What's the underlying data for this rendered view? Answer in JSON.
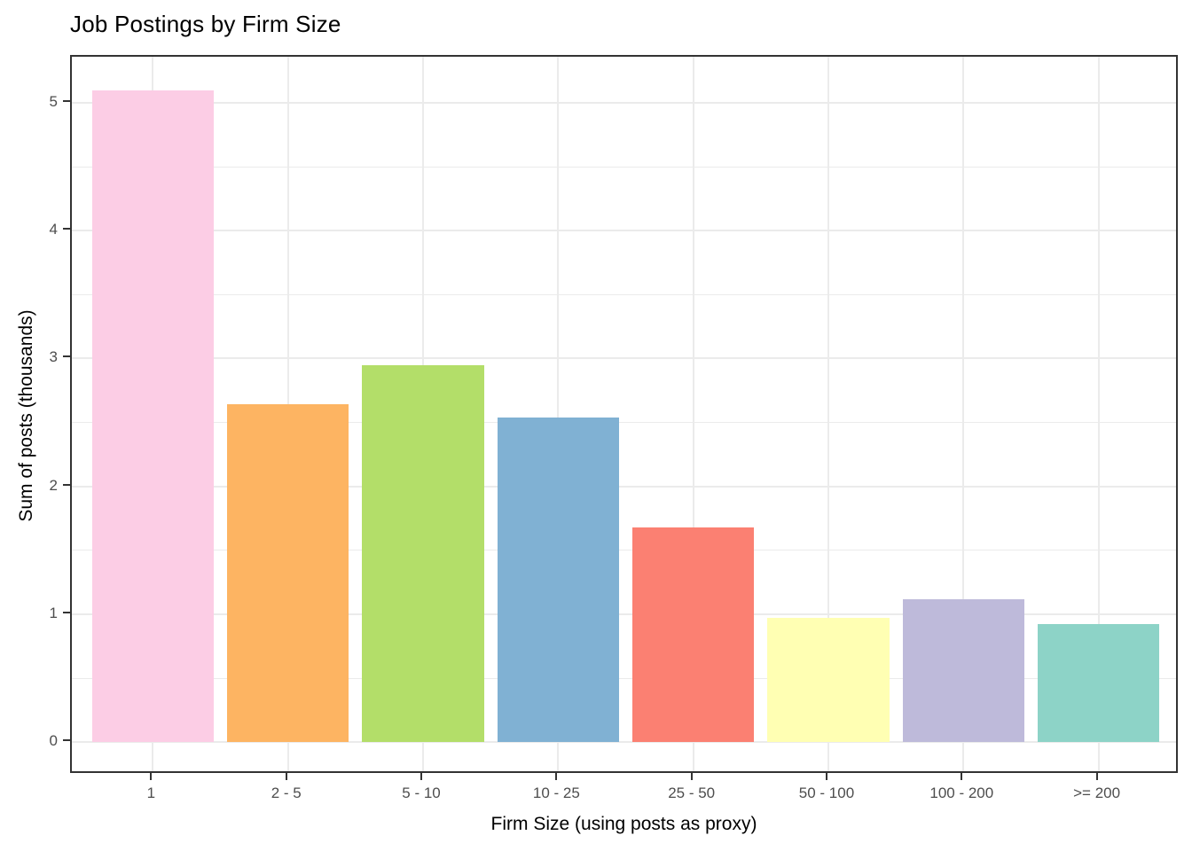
{
  "title": "Job Postings by Firm Size",
  "chart_data": {
    "type": "bar",
    "title": "Job Postings by Firm Size",
    "xlabel": "Firm Size (using posts as proxy)",
    "ylabel": "Sum of posts (thousands)",
    "categories": [
      "1",
      "2 - 5",
      "5 - 10",
      "10 - 25",
      "25 - 50",
      "50 - 100",
      "100 - 200",
      ">= 200"
    ],
    "values": [
      5.1,
      2.64,
      2.95,
      2.54,
      1.68,
      0.97,
      1.12,
      0.92
    ],
    "bar_colors": [
      "#FCCDE5",
      "#FDB462",
      "#B3DE69",
      "#80B1D3",
      "#FB8072",
      "#FFFFB3",
      "#BEBADA",
      "#8DD3C7"
    ],
    "yticks": [
      0,
      1,
      2,
      3,
      4,
      5
    ],
    "yticks_minor": [
      0.5,
      1.5,
      2.5,
      3.5,
      4.5
    ],
    "ylim": [
      -0.2555,
      5.3605
    ],
    "bar_width_fraction": 0.9,
    "band_padding": 0.6,
    "grid": true,
    "legend": false,
    "colors": {
      "background": "#FFFFFF",
      "panel_border": "#333333",
      "grid": "#EBEBEB",
      "tick": "#333333",
      "tick_label": "#4D4D4D",
      "title": "#000000",
      "axis_title": "#000000"
    }
  }
}
